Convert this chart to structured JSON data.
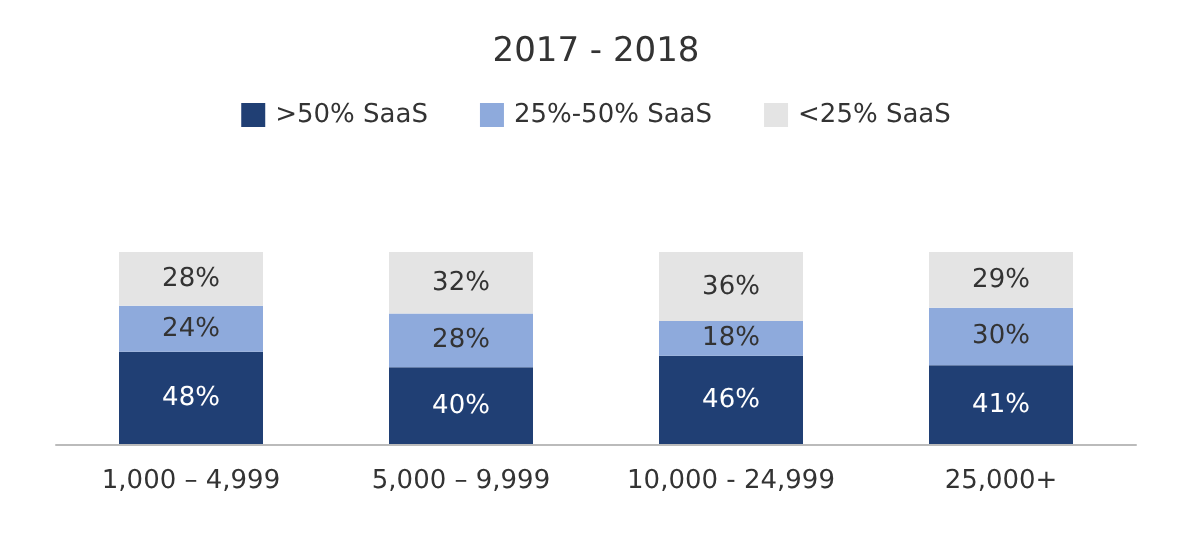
{
  "chart_data": {
    "type": "bar",
    "title": "2017 - 2018",
    "stacked": true,
    "legend": "top",
    "categories": [
      "1,000 – 4,999",
      "5,000 – 9,999",
      "10,000 - 24,999",
      "25,000+"
    ],
    "series": [
      {
        "name": ">50% SaaS",
        "color": "#203f74",
        "values": [
          48,
          40,
          46,
          41
        ],
        "value_labels": [
          "48%",
          "40%",
          "46%",
          "41%"
        ]
      },
      {
        "name": "25%-50% SaaS",
        "color": "#8eaadc",
        "values": [
          24,
          28,
          18,
          30
        ],
        "value_labels": [
          "24%",
          "28%",
          "18%",
          "30%"
        ]
      },
      {
        "name": "<25% SaaS",
        "color": "#e4e4e4",
        "values": [
          28,
          32,
          36,
          29
        ],
        "value_labels": [
          "28%",
          "32%",
          "36%",
          "29%"
        ]
      }
    ]
  }
}
